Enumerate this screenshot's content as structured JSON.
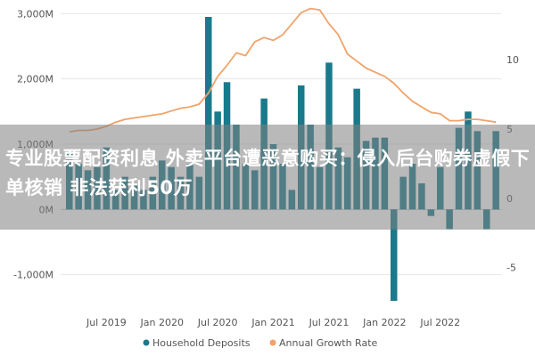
{
  "headline": "专业股票配资利息 外卖平台遭恶意购买：侵入后台购券虚假下单核销 非法获利50万",
  "chart_data": {
    "type": "bar+line",
    "left_axis": {
      "ticks": [
        "3,000M",
        "2,000M",
        "1,000M",
        "0M",
        "-1,000M"
      ],
      "tick_values": [
        3000,
        2000,
        1000,
        0,
        -1000
      ],
      "ylim": [
        -1400,
        3100
      ]
    },
    "right_axis": {
      "ticks": [
        "10",
        "5",
        "0",
        "-5"
      ],
      "tick_values": [
        10,
        5,
        0,
        -5
      ],
      "ylim": [
        -7.4,
        13.8
      ]
    },
    "x_ticks": [
      "Jul 2019",
      "Jan 2020",
      "Jul 2020",
      "Jan 2021",
      "Jul 2021",
      "Jan 2022",
      "Jul 2022"
    ],
    "x_tick_index": [
      4,
      10,
      16,
      22,
      28,
      34,
      40
    ],
    "series": [
      {
        "name": "Household Deposits",
        "type": "bar",
        "color": "#1a7a8c",
        "values": [
          850,
          700,
          600,
          650,
          950,
          300,
          500,
          400,
          300,
          500,
          750,
          650,
          500,
          700,
          500,
          2950,
          1500,
          1950,
          1300,
          700,
          600,
          1700,
          1000,
          700,
          300,
          1900,
          1300,
          650,
          2250,
          950,
          800,
          1850,
          1050,
          1100,
          1100,
          -1400,
          500,
          700,
          400,
          -100,
          650,
          -300,
          1250,
          1500,
          1200,
          -300,
          1200
        ]
      },
      {
        "name": "Annual Growth Rate",
        "type": "line",
        "color": "#f0a36a",
        "values": [
          4.8,
          4.9,
          4.9,
          5.0,
          5.2,
          5.5,
          5.7,
          5.8,
          5.9,
          6.0,
          6.1,
          6.3,
          6.5,
          6.6,
          6.8,
          7.6,
          8.8,
          9.6,
          10.5,
          10.3,
          11.3,
          11.6,
          11.4,
          11.8,
          12.6,
          13.4,
          13.7,
          13.6,
          12.6,
          11.8,
          10.4,
          9.9,
          9.4,
          9.1,
          8.8,
          8.3,
          7.6,
          7.0,
          6.6,
          6.2,
          6.1,
          5.6,
          5.6,
          5.7,
          5.7,
          5.6,
          5.5
        ]
      }
    ],
    "legend": {
      "position": "bottom",
      "items": [
        "Household Deposits",
        "Annual Growth Rate"
      ]
    }
  }
}
